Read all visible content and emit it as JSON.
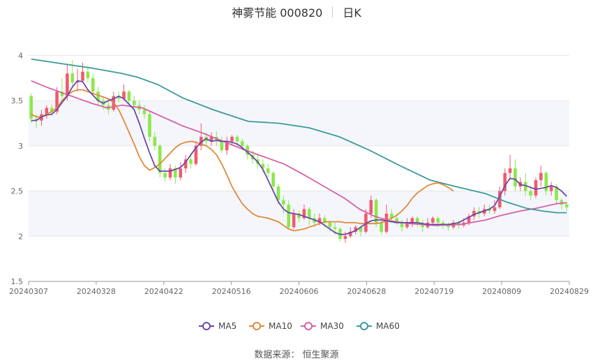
{
  "header": {
    "title": "神雾节能 000820",
    "period": "日K"
  },
  "footer": {
    "source": "数据来源：  恒生聚源"
  },
  "colors": {
    "up": "#f05a6e",
    "down": "#8be84a",
    "ma5": "#6b48a6",
    "ma10": "#e0893a",
    "ma30": "#d760a8",
    "ma60": "#3d9a9b",
    "band": "#f4f6fb",
    "grid": "#e6e6e6"
  },
  "chart_data": {
    "type": "candlestick",
    "x_tick_labels": [
      "20240307",
      "20240328",
      "20240422",
      "20240516",
      "20240606",
      "20240628",
      "20240719",
      "20240809",
      "20240829"
    ],
    "y_ticks": [
      1.5,
      2,
      2.5,
      3,
      3.5,
      4
    ],
    "ylim": [
      1.5,
      4.15
    ],
    "legend": [
      "MA5",
      "MA10",
      "MA30",
      "MA60"
    ],
    "candles": [
      [
        3.55,
        3.3,
        3.58,
        3.25
      ],
      [
        3.3,
        3.28,
        3.35,
        3.2
      ],
      [
        3.28,
        3.35,
        3.4,
        3.22
      ],
      [
        3.35,
        3.42,
        3.45,
        3.3
      ],
      [
        3.42,
        3.38,
        3.46,
        3.33
      ],
      [
        3.38,
        3.6,
        3.65,
        3.35
      ],
      [
        3.6,
        3.55,
        3.75,
        3.5
      ],
      [
        3.55,
        3.8,
        3.9,
        3.5
      ],
      [
        3.8,
        3.7,
        3.95,
        3.65
      ],
      [
        3.7,
        3.72,
        3.85,
        3.6
      ],
      [
        3.72,
        3.82,
        3.92,
        3.7
      ],
      [
        3.82,
        3.75,
        3.88,
        3.7
      ],
      [
        3.75,
        3.6,
        3.8,
        3.55
      ],
      [
        3.6,
        3.5,
        3.65,
        3.45
      ],
      [
        3.5,
        3.45,
        3.55,
        3.4
      ],
      [
        3.45,
        3.4,
        3.5,
        3.35
      ],
      [
        3.4,
        3.55,
        3.6,
        3.38
      ],
      [
        3.55,
        3.52,
        3.6,
        3.48
      ],
      [
        3.52,
        3.6,
        3.68,
        3.5
      ],
      [
        3.6,
        3.5,
        3.62,
        3.45
      ],
      [
        3.5,
        3.45,
        3.55,
        3.4
      ],
      [
        3.45,
        3.4,
        3.5,
        3.35
      ],
      [
        3.4,
        3.35,
        3.45,
        3.3
      ],
      [
        3.35,
        3.1,
        3.38,
        3.05
      ],
      [
        3.1,
        3.0,
        3.15,
        2.95
      ],
      [
        3.0,
        2.7,
        3.02,
        2.65
      ],
      [
        2.7,
        2.65,
        2.75,
        2.6
      ],
      [
        2.65,
        2.75,
        2.8,
        2.62
      ],
      [
        2.75,
        2.65,
        2.78,
        2.58
      ],
      [
        2.65,
        2.75,
        2.82,
        2.62
      ],
      [
        2.75,
        2.85,
        2.9,
        2.7
      ],
      [
        2.85,
        2.8,
        2.92,
        2.75
      ],
      [
        2.8,
        3.0,
        3.05,
        2.78
      ],
      [
        3.0,
        3.1,
        3.25,
        2.95
      ],
      [
        3.1,
        3.05,
        3.15,
        3.0
      ],
      [
        3.05,
        3.1,
        3.15,
        3.0
      ],
      [
        3.1,
        3.05,
        3.16,
        3.0
      ],
      [
        3.05,
        2.95,
        3.1,
        2.92
      ],
      [
        2.95,
        3.05,
        3.1,
        2.9
      ],
      [
        3.05,
        3.1,
        3.12,
        3.0
      ],
      [
        3.1,
        3.05,
        3.12,
        3.0
      ],
      [
        3.05,
        3.0,
        3.08,
        2.95
      ],
      [
        3.0,
        2.9,
        3.02,
        2.85
      ],
      [
        2.9,
        2.85,
        2.95,
        2.8
      ],
      [
        2.85,
        2.8,
        2.9,
        2.75
      ],
      [
        2.8,
        2.75,
        2.85,
        2.7
      ],
      [
        2.75,
        2.7,
        2.8,
        2.65
      ],
      [
        2.7,
        2.55,
        2.72,
        2.5
      ],
      [
        2.55,
        2.4,
        2.58,
        2.35
      ],
      [
        2.4,
        2.35,
        2.45,
        2.25
      ],
      [
        2.35,
        2.1,
        2.4,
        2.08
      ],
      [
        2.1,
        2.25,
        2.3,
        2.08
      ],
      [
        2.25,
        2.2,
        2.28,
        2.15
      ],
      [
        2.2,
        2.3,
        2.35,
        2.18
      ],
      [
        2.3,
        2.2,
        2.32,
        2.12
      ],
      [
        2.2,
        2.15,
        2.25,
        2.1
      ],
      [
        2.15,
        2.2,
        2.25,
        2.12
      ],
      [
        2.2,
        2.15,
        2.23,
        2.1
      ],
      [
        2.15,
        2.1,
        2.18,
        2.05
      ],
      [
        2.1,
        2.08,
        2.15,
        2.02
      ],
      [
        2.08,
        1.97,
        2.1,
        1.94
      ],
      [
        1.97,
        2.0,
        2.05,
        1.93
      ],
      [
        2.0,
        2.05,
        2.1,
        1.98
      ],
      [
        2.05,
        2.1,
        2.12,
        2.02
      ],
      [
        2.1,
        2.05,
        2.12,
        2.0
      ],
      [
        2.05,
        2.25,
        2.3,
        2.03
      ],
      [
        2.25,
        2.4,
        2.45,
        2.2
      ],
      [
        2.4,
        2.15,
        2.42,
        2.1
      ],
      [
        2.15,
        2.05,
        2.18,
        2.02
      ],
      [
        2.05,
        2.25,
        2.35,
        2.03
      ],
      [
        2.25,
        2.2,
        2.3,
        2.15
      ],
      [
        2.2,
        2.15,
        2.25,
        2.12
      ],
      [
        2.15,
        2.1,
        2.18,
        2.05
      ],
      [
        2.1,
        2.15,
        2.2,
        2.08
      ],
      [
        2.15,
        2.2,
        2.22,
        2.1
      ],
      [
        2.2,
        2.15,
        2.22,
        2.1
      ],
      [
        2.15,
        2.1,
        2.18,
        2.05
      ],
      [
        2.1,
        2.15,
        2.2,
        2.08
      ],
      [
        2.15,
        2.2,
        2.22,
        2.12
      ],
      [
        2.2,
        2.15,
        2.22,
        2.1
      ],
      [
        2.15,
        2.12,
        2.18,
        2.08
      ],
      [
        2.12,
        2.1,
        2.15,
        2.06
      ],
      [
        2.1,
        2.15,
        2.18,
        2.08
      ],
      [
        2.15,
        2.12,
        2.18,
        2.08
      ],
      [
        2.12,
        2.15,
        2.2,
        2.1
      ],
      [
        2.15,
        2.22,
        2.25,
        2.12
      ],
      [
        2.22,
        2.28,
        2.32,
        2.18
      ],
      [
        2.28,
        2.25,
        2.32,
        2.2
      ],
      [
        2.25,
        2.3,
        2.35,
        2.22
      ],
      [
        2.3,
        2.28,
        2.35,
        2.25
      ],
      [
        2.28,
        2.32,
        2.4,
        2.25
      ],
      [
        2.32,
        2.5,
        2.55,
        2.3
      ],
      [
        2.5,
        2.7,
        2.75,
        2.45
      ],
      [
        2.7,
        2.75,
        2.9,
        2.62
      ],
      [
        2.75,
        2.55,
        2.85,
        2.5
      ],
      [
        2.55,
        2.6,
        2.65,
        2.5
      ],
      [
        2.6,
        2.5,
        2.7,
        2.45
      ],
      [
        2.5,
        2.45,
        2.55,
        2.4
      ],
      [
        2.45,
        2.62,
        2.65,
        2.42
      ],
      [
        2.62,
        2.7,
        2.78,
        2.55
      ],
      [
        2.7,
        2.5,
        2.72,
        2.45
      ],
      [
        2.5,
        2.55,
        2.6,
        2.45
      ],
      [
        2.55,
        2.4,
        2.58,
        2.35
      ],
      [
        2.4,
        2.35,
        2.42,
        2.3
      ],
      [
        2.35,
        2.32,
        2.38,
        2.28
      ]
    ],
    "ma5": [
      3.28,
      3.28,
      3.32,
      3.34,
      3.35,
      3.4,
      3.48,
      3.55,
      3.65,
      3.72,
      3.71,
      3.62,
      3.56,
      3.5,
      3.47,
      3.5,
      3.52,
      3.55,
      3.52,
      3.46,
      3.4,
      3.25,
      3.08,
      2.92,
      2.78,
      2.72,
      2.72,
      2.72,
      2.74,
      2.76,
      2.82,
      2.9,
      2.98,
      3.04,
      3.08,
      3.05,
      3.06,
      3.05,
      3.05,
      3.04,
      3.02,
      2.98,
      2.93,
      2.88,
      2.82,
      2.74,
      2.62,
      2.5,
      2.38,
      2.3,
      2.26,
      2.25,
      2.24,
      2.22,
      2.2,
      2.18,
      2.16,
      2.12,
      2.08,
      2.04,
      2.02,
      2.02,
      2.04,
      2.06,
      2.1,
      2.14,
      2.17,
      2.18,
      2.18,
      2.17,
      2.16,
      2.15,
      2.15,
      2.15,
      2.15,
      2.15,
      2.14,
      2.13,
      2.13,
      2.13,
      2.13,
      2.13,
      2.14,
      2.15,
      2.18,
      2.21,
      2.24,
      2.26,
      2.28,
      2.3,
      2.34,
      2.44,
      2.56,
      2.64,
      2.63,
      2.57,
      2.56,
      2.54,
      2.52,
      2.53,
      2.54,
      2.56,
      2.54,
      2.5,
      2.44
    ],
    "ma10": [
      3.35,
      3.32,
      3.32,
      3.35,
      3.38,
      3.42,
      3.5,
      3.56,
      3.6,
      3.62,
      3.62,
      3.6,
      3.58,
      3.56,
      3.54,
      3.52,
      3.48,
      3.4,
      3.28,
      3.15,
      3.02,
      2.88,
      2.78,
      2.73,
      2.76,
      2.8,
      2.86,
      2.92,
      2.98,
      3.02,
      3.04,
      3.05,
      3.04,
      3.02,
      3.0,
      2.96,
      2.9,
      2.8,
      2.68,
      2.55,
      2.45,
      2.36,
      2.3,
      2.25,
      2.22,
      2.21,
      2.2,
      2.18,
      2.16,
      2.12,
      2.08,
      2.06,
      2.07,
      2.08,
      2.1,
      2.12,
      2.14,
      2.16,
      2.16,
      2.16,
      2.16,
      2.15,
      2.15,
      2.15,
      2.14,
      2.14,
      2.14,
      2.14,
      2.15,
      2.17,
      2.2,
      2.23,
      2.28,
      2.34,
      2.42,
      2.48,
      2.52,
      2.56,
      2.58,
      2.59,
      2.57,
      2.54,
      2.5
    ]
  }
}
